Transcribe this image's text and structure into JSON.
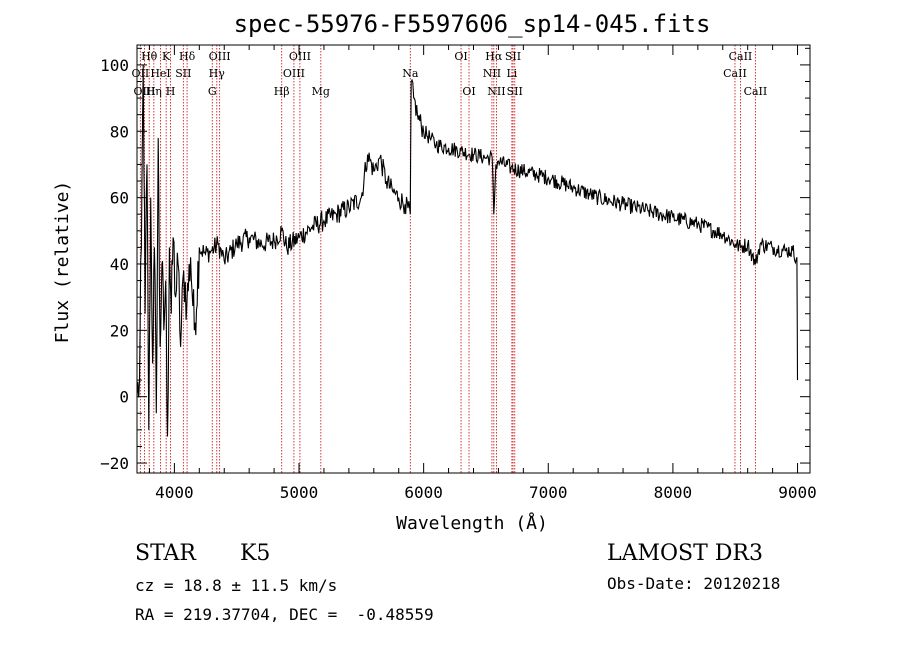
{
  "chart_data": {
    "type": "line",
    "title": "spec-55976-F5597606_sp14-045.fits",
    "xlabel": "Wavelength (Å)",
    "ylabel": "Flux (relative)",
    "xlim": [
      3700,
      9100
    ],
    "ylim": [
      -23,
      106
    ],
    "xticks": [
      4000,
      5000,
      6000,
      7000,
      8000,
      9000
    ],
    "yticks": [
      -20,
      0,
      20,
      40,
      60,
      80,
      100
    ],
    "grid": false,
    "series": [
      {
        "name": "spectrum",
        "x": [
          3700,
          3720,
          3735,
          3750,
          3765,
          3780,
          3795,
          3810,
          3825,
          3840,
          3855,
          3870,
          3885,
          3900,
          3915,
          3930,
          3945,
          3960,
          3975,
          3990,
          4010,
          4030,
          4050,
          4075,
          4100,
          4130,
          4160,
          4200,
          4250,
          4300,
          4350,
          4400,
          4500,
          4600,
          4700,
          4800,
          4861,
          4900,
          5000,
          5100,
          5200,
          5300,
          5400,
          5500,
          5550,
          5600,
          5650,
          5700,
          5750,
          5800,
          5850,
          5893,
          5900,
          5920,
          5950,
          6000,
          6050,
          6100,
          6200,
          6300,
          6400,
          6500,
          6550,
          6563,
          6580,
          6600,
          6700,
          6800,
          6900,
          7000,
          7200,
          7400,
          7600,
          7800,
          8000,
          8200,
          8400,
          8500,
          8542,
          8600,
          8662,
          8700,
          8800,
          8900,
          8960,
          8995,
          9000
        ],
        "values": [
          0,
          5,
          45,
          100,
          25,
          70,
          -10,
          60,
          10,
          45,
          -5,
          78,
          15,
          40,
          20,
          35,
          -12,
          45,
          25,
          48,
          30,
          40,
          15,
          38,
          28,
          42,
          20,
          45,
          43,
          44,
          46,
          41,
          46,
          48,
          46,
          47,
          50,
          45,
          48,
          51,
          53,
          55,
          57,
          60,
          73,
          68,
          72,
          65,
          62,
          60,
          58,
          55,
          95,
          90,
          85,
          80,
          78,
          76,
          75,
          74,
          73,
          72,
          72,
          55,
          70,
          71,
          69,
          68,
          67,
          66,
          63,
          60,
          58,
          56,
          54,
          52,
          49,
          46,
          45,
          46,
          40,
          46,
          45,
          44,
          44,
          42,
          5
        ]
      }
    ],
    "lines": [
      {
        "label": "Hθ",
        "x": 3798,
        "row": 0
      },
      {
        "label": "OII",
        "x": 3727,
        "row": 1
      },
      {
        "label": "OIII",
        "x": 3760,
        "row": 2
      },
      {
        "label": "Hη",
        "x": 3835,
        "row": 2
      },
      {
        "label": "HeI",
        "x": 3889,
        "row": 1
      },
      {
        "label": "K",
        "x": 3934,
        "row": 0
      },
      {
        "label": "SII",
        "x": 4072,
        "row": 1
      },
      {
        "label": "H",
        "x": 3969,
        "row": 2
      },
      {
        "label": "Hδ",
        "x": 4102,
        "row": 0
      },
      {
        "label": "OIII",
        "x": 4363,
        "row": 0
      },
      {
        "label": "Hγ",
        "x": 4340,
        "row": 1
      },
      {
        "label": "G",
        "x": 4304,
        "row": 2
      },
      {
        "label": "Hβ",
        "x": 4861,
        "row": 2
      },
      {
        "label": "OIII",
        "x": 5007,
        "row": 0
      },
      {
        "label": "OIII",
        "x": 4959,
        "row": 1
      },
      {
        "label": "Mg",
        "x": 5175,
        "row": 2
      },
      {
        "label": "Na",
        "x": 5893,
        "row": 1
      },
      {
        "label": "OI",
        "x": 6300,
        "row": 0
      },
      {
        "label": "OI",
        "x": 6364,
        "row": 2
      },
      {
        "label": "Hα",
        "x": 6563,
        "row": 0
      },
      {
        "label": "NII",
        "x": 6548,
        "row": 1
      },
      {
        "label": "NII",
        "x": 6584,
        "row": 2
      },
      {
        "label": "SII",
        "x": 6717,
        "row": 0
      },
      {
        "label": "Li",
        "x": 6708,
        "row": 1
      },
      {
        "label": "SII",
        "x": 6731,
        "row": 2
      },
      {
        "label": "CaII",
        "x": 8542,
        "row": 0
      },
      {
        "label": "CaII",
        "x": 8498,
        "row": 1
      },
      {
        "label": "CaII",
        "x": 8662,
        "row": 2
      }
    ]
  },
  "info": {
    "class": "STAR",
    "subclass": "K5",
    "cz": "cz = 18.8 ± 11.5 km/s",
    "coords": "RA = 219.37704, DEC =  -0.48559",
    "survey": "LAMOST DR3",
    "obsdate": "Obs-Date: 20120218"
  }
}
